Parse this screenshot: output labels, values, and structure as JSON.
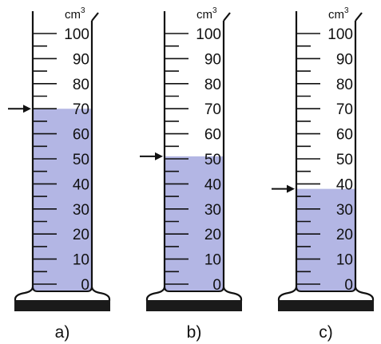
{
  "colors": {
    "liquid": "#b3b6e4",
    "stroke": "#111111",
    "base": "#1a1a1a",
    "background": "#ffffff"
  },
  "scale": {
    "unit": "cm",
    "unit_exponent": "3",
    "labels": [
      "0",
      "10",
      "20",
      "30",
      "40",
      "50",
      "60",
      "70",
      "80",
      "90",
      "100"
    ],
    "min": 0,
    "max": 100,
    "minor_step": 5,
    "major_step": 10
  },
  "cylinders": [
    {
      "caption": "a)",
      "liquid_level": 70,
      "arrow_level": 70
    },
    {
      "caption": "b)",
      "liquid_level": 51,
      "arrow_level": 51
    },
    {
      "caption": "c)",
      "liquid_level": 38,
      "arrow_level": 38
    }
  ]
}
